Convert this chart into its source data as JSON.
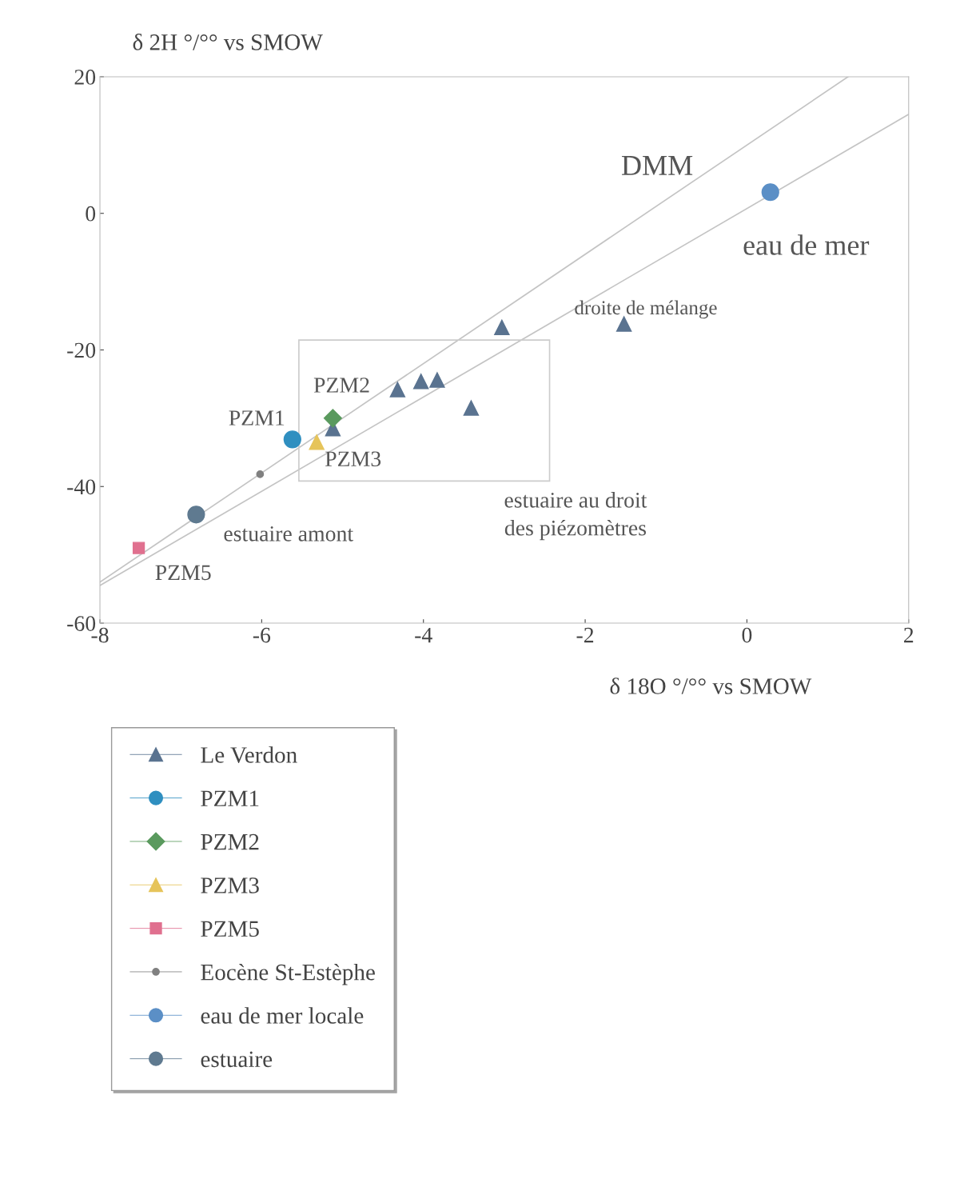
{
  "chart_data": {
    "type": "scatter",
    "xlabel": "δ 18O °/°° vs SMOW",
    "ylabel": "δ 2H °/°° vs SMOW",
    "xlim": [
      -8,
      2
    ],
    "xticks": [
      -8,
      -6,
      -4,
      -2,
      0,
      2
    ],
    "ylim": [
      -60,
      20
    ],
    "yticks": [
      -60,
      -40,
      -20,
      0,
      20
    ],
    "grid": false,
    "legend": "bottom left",
    "series": [
      {
        "name": "Le Verdon",
        "marker": "triangle",
        "color": "#5a7390",
        "x": [
          -3.03,
          -1.52,
          -4.32,
          -4.03,
          -3.83,
          -3.41,
          -5.12
        ],
        "values": [
          -16.7,
          -16.2,
          -25.8,
          -24.6,
          -24.4,
          -28.5,
          -31.5
        ]
      },
      {
        "name": "PZM1",
        "marker": "circle",
        "color": "#2f8fc0",
        "x": [
          -5.62
        ],
        "values": [
          -33.1
        ]
      },
      {
        "name": "PZM2",
        "marker": "diamond",
        "color": "#5a9a5e",
        "x": [
          -5.12
        ],
        "values": [
          -30.0
        ]
      },
      {
        "name": "PZM3",
        "marker": "triangle",
        "color": "#e6c45a",
        "x": [
          -5.32
        ],
        "values": [
          -33.5
        ]
      },
      {
        "name": "PZM5",
        "marker": "square",
        "color": "#e0708f",
        "x": [
          -7.52
        ],
        "values": [
          -49.0
        ]
      },
      {
        "name": "Eocène St-Estèphe",
        "marker": "circle",
        "color": "#808080",
        "x": [
          -6.02
        ],
        "values": [
          -38.2
        ]
      },
      {
        "name": "eau de mer locale",
        "marker": "circle",
        "color": "#5b8fc6",
        "x": [
          0.29
        ],
        "values": [
          3.1
        ]
      },
      {
        "name": "estuaire",
        "marker": "circle",
        "color": "#5f7a90",
        "x": [
          -6.81
        ],
        "values": [
          -44.1
        ]
      },
      {
        "type": "line",
        "color": "#c4c4c4",
        "x": [
          -8,
          1.25
        ],
        "values": [
          -54,
          20
        ]
      },
      {
        "type": "line",
        "color": "#c4c4c4",
        "x": [
          -8,
          2
        ],
        "values": [
          -54.5,
          14.5
        ]
      }
    ],
    "annotations": [
      "DMM",
      "eau de mer",
      "droite de mélange",
      "PZM2",
      "PZM1",
      "PZM3",
      "estuaire au droit\ndes piézomètres",
      "estuaire amont",
      "PZM5"
    ]
  }
}
